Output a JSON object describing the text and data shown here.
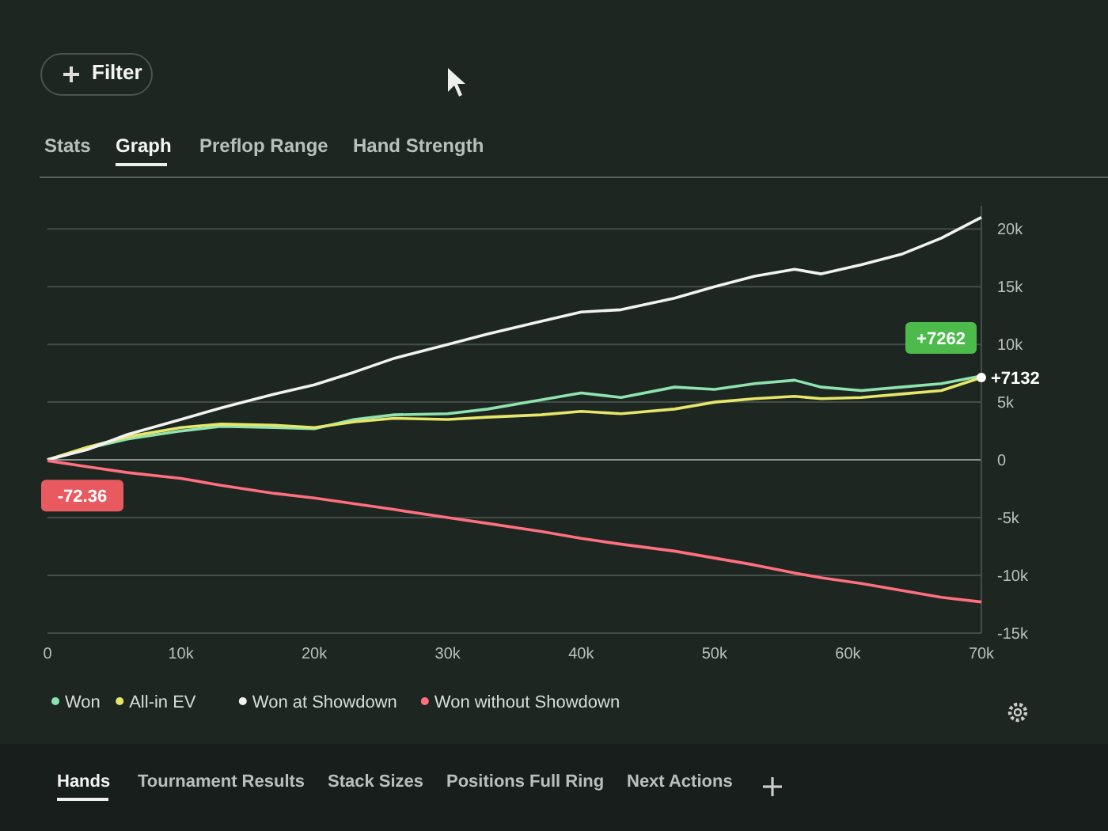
{
  "chart_data": {
    "type": "line",
    "xlim": [
      0,
      70000
    ],
    "xticks": [
      {
        "value": 0,
        "label": "0"
      },
      {
        "value": 10000,
        "label": "10k"
      },
      {
        "value": 20000,
        "label": "20k"
      },
      {
        "value": 30000,
        "label": "30k"
      },
      {
        "value": 40000,
        "label": "40k"
      },
      {
        "value": 50000,
        "label": "50k"
      },
      {
        "value": 60000,
        "label": "60k"
      },
      {
        "value": 70000,
        "label": "70k"
      }
    ],
    "ylim": [
      -15000,
      22000
    ],
    "yticks": [
      {
        "value": -15000,
        "label": "-15k"
      },
      {
        "value": -10000,
        "label": "-10k"
      },
      {
        "value": -5000,
        "label": "-5k"
      },
      0,
      {
        "value": 5000,
        "label": "5k"
      },
      {
        "value": 10000,
        "label": "10k"
      },
      {
        "value": 15000,
        "label": "15k"
      },
      {
        "value": 20000,
        "label": "20k"
      }
    ],
    "x": [
      0,
      3000,
      6000,
      10000,
      13000,
      17000,
      20000,
      23000,
      26000,
      30000,
      33000,
      37000,
      40000,
      43000,
      47000,
      50000,
      53000,
      56000,
      58000,
      61000,
      64000,
      67000,
      70000
    ],
    "series": [
      {
        "name": "Won",
        "color": "#8fe3b0",
        "values": [
          0,
          1000,
          1800,
          2500,
          2900,
          2800,
          2700,
          3500,
          3900,
          4000,
          4400,
          5200,
          5800,
          5400,
          6300,
          6100,
          6600,
          6900,
          6300,
          6000,
          6300,
          6600,
          7262
        ]
      },
      {
        "name": "All-in EV",
        "color": "#e6e66a",
        "values": [
          0,
          1100,
          2000,
          2800,
          3100,
          3000,
          2800,
          3300,
          3600,
          3500,
          3700,
          3900,
          4200,
          4000,
          4400,
          5000,
          5300,
          5500,
          5300,
          5400,
          5700,
          6000,
          7132
        ]
      },
      {
        "name": "Won at Showdown",
        "color": "#f2f2f2",
        "values": [
          0,
          900,
          2200,
          3500,
          4500,
          5700,
          6500,
          7600,
          8800,
          10000,
          10900,
          12000,
          12800,
          13000,
          14000,
          15000,
          15900,
          16500,
          16100,
          16900,
          17800,
          19200,
          21000
        ]
      },
      {
        "name": "Won without Showdown",
        "color": "#ff6f7f",
        "values": [
          -72.36,
          -600,
          -1100,
          -1600,
          -2200,
          -2900,
          -3300,
          -3800,
          -4300,
          -5000,
          -5500,
          -6200,
          -6800,
          -7300,
          -7900,
          -8500,
          -9100,
          -9800,
          -10200,
          -10700,
          -11300,
          -11900,
          -12300
        ]
      }
    ],
    "grid": "y",
    "legend": "bottom",
    "marker": "none",
    "line_style": "solid",
    "annotations": [
      "+7262",
      "+7132",
      "-72.36",
      "Filter",
      "Stats",
      "Graph",
      "Preflop Range",
      "Hand Strength",
      "Hands",
      "Tournament Results",
      "Stack Sizes",
      "Positions Full Ring",
      "Next Actions"
    ]
  }
}
